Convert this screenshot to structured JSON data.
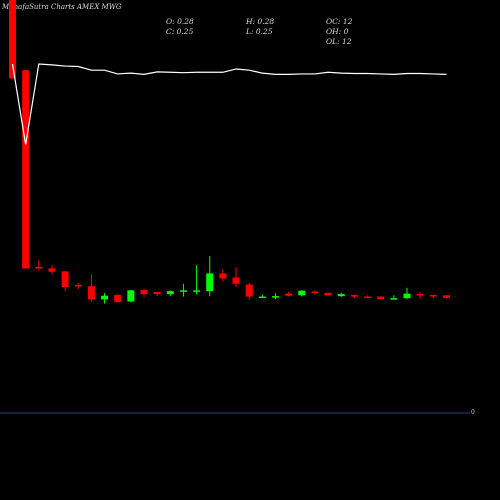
{
  "header": {
    "title": "MunafaSutra Charts AMEX  MWG"
  },
  "ohlc_info": {
    "open_label": "O:",
    "open_value": "0.28",
    "close_label": "C:",
    "close_value": "0.25",
    "high_label": "H:",
    "high_value": "0.28",
    "low_label": "L:",
    "low_value": "0.25",
    "oc_label": "OC:",
    "oc_value": "12",
    "oh_label": "OH:",
    "oh_value": "0",
    "ol_label": "OL:",
    "ol_value": "12"
  },
  "colors": {
    "background": "#000000",
    "up": "#00ff00",
    "down": "#ff0000",
    "line": "#ffffff",
    "axis": "#333399"
  },
  "chart_data": {
    "type": "candlestick",
    "title": "",
    "xlabel": "",
    "ylabel": "",
    "axis_label": "0",
    "candles": [
      {
        "o": 100.0,
        "h": 100.0,
        "l": 81.0,
        "c": 81.0
      },
      {
        "o": 83.0,
        "h": 83.0,
        "l": 35.0,
        "c": 35.0
      },
      {
        "o": 35.4,
        "h": 37.0,
        "l": 34.5,
        "c": 35.0
      },
      {
        "o": 35.0,
        "h": 35.8,
        "l": 33.5,
        "c": 34.2
      },
      {
        "o": 34.3,
        "h": 34.3,
        "l": 29.5,
        "c": 30.5
      },
      {
        "o": 31.0,
        "h": 31.5,
        "l": 30.0,
        "c": 30.9
      },
      {
        "o": 30.7,
        "h": 33.5,
        "l": 27.0,
        "c": 27.5
      },
      {
        "o": 27.5,
        "h": 29.0,
        "l": 26.5,
        "c": 28.4
      },
      {
        "o": 28.6,
        "h": 28.6,
        "l": 26.8,
        "c": 26.9
      },
      {
        "o": 27.0,
        "h": 29.8,
        "l": 26.8,
        "c": 29.7
      },
      {
        "o": 29.8,
        "h": 30.0,
        "l": 28.0,
        "c": 28.8
      },
      {
        "o": 29.3,
        "h": 29.3,
        "l": 28.3,
        "c": 28.8
      },
      {
        "o": 28.8,
        "h": 29.7,
        "l": 28.3,
        "c": 29.5
      },
      {
        "o": 29.5,
        "h": 31.3,
        "l": 28.2,
        "c": 29.7
      },
      {
        "o": 29.5,
        "h": 35.8,
        "l": 28.7,
        "c": 29.7
      },
      {
        "o": 29.5,
        "h": 38.0,
        "l": 28.3,
        "c": 33.8
      },
      {
        "o": 33.8,
        "h": 34.8,
        "l": 31.8,
        "c": 32.6
      },
      {
        "o": 32.8,
        "h": 35.3,
        "l": 30.5,
        "c": 31.3
      },
      {
        "o": 31.1,
        "h": 31.5,
        "l": 27.5,
        "c": 28.2
      },
      {
        "o": 28.2,
        "h": 28.7,
        "l": 27.8,
        "c": 28.2
      },
      {
        "o": 28.3,
        "h": 29.0,
        "l": 27.6,
        "c": 28.3
      },
      {
        "o": 28.9,
        "h": 29.3,
        "l": 28.2,
        "c": 28.4
      },
      {
        "o": 28.5,
        "h": 29.8,
        "l": 28.2,
        "c": 29.6
      },
      {
        "o": 29.4,
        "h": 29.7,
        "l": 28.7,
        "c": 29.0
      },
      {
        "o": 29.1,
        "h": 29.1,
        "l": 28.5,
        "c": 28.5
      },
      {
        "o": 28.3,
        "h": 29.1,
        "l": 28.1,
        "c": 28.8
      },
      {
        "o": 28.6,
        "h": 28.6,
        "l": 27.8,
        "c": 28.2
      },
      {
        "o": 28.2,
        "h": 28.5,
        "l": 27.8,
        "c": 28.0
      },
      {
        "o": 28.2,
        "h": 28.2,
        "l": 27.6,
        "c": 27.6
      },
      {
        "o": 27.8,
        "h": 28.5,
        "l": 27.5,
        "c": 27.8
      },
      {
        "o": 27.8,
        "h": 30.3,
        "l": 27.5,
        "c": 28.9
      },
      {
        "o": 28.8,
        "h": 29.2,
        "l": 27.7,
        "c": 28.6
      },
      {
        "o": 28.6,
        "h": 28.6,
        "l": 27.8,
        "c": 28.2
      },
      {
        "o": 28.5,
        "h": 28.5,
        "l": 27.8,
        "c": 27.9
      }
    ],
    "line": [
      84.5,
      65.0,
      84.5,
      84.3,
      84.0,
      83.9,
      83.0,
      83.0,
      82.1,
      82.3,
      82.0,
      82.6,
      82.5,
      82.4,
      82.5,
      82.5,
      82.5,
      83.3,
      83.0,
      82.3,
      82.0,
      82.0,
      82.1,
      82.1,
      82.5,
      82.3,
      82.2,
      82.2,
      82.1,
      82.0,
      82.2,
      82.2,
      82.1,
      82.0
    ],
    "ylim": [
      0,
      100
    ]
  }
}
